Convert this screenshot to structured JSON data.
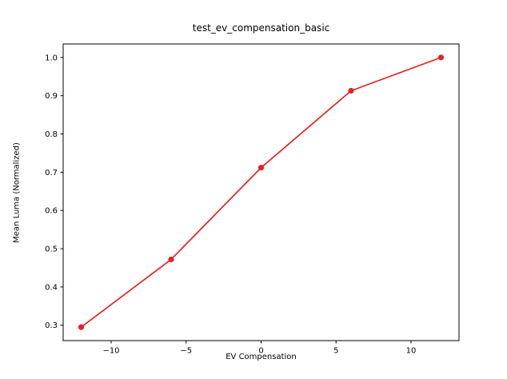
{
  "chart_data": {
    "type": "line",
    "title": "test_ev_compensation_basic",
    "xlabel": "EV Compensation",
    "ylabel": "Mean Luma (Normalized)",
    "x": [
      -12,
      -6,
      0,
      6,
      12
    ],
    "y": [
      0.295,
      0.472,
      0.712,
      0.913,
      1.0
    ],
    "line_color": "#e42222",
    "marker": "circle",
    "grid": false,
    "legend": "none",
    "xlim": [
      -13.2,
      13.2
    ],
    "ylim": [
      0.2597,
      1.0353
    ],
    "x_ticks": [
      -10,
      -5,
      0,
      5,
      10
    ],
    "x_tick_labels": [
      "−10",
      "−5",
      "0",
      "5",
      "10"
    ],
    "y_ticks": [
      0.3,
      0.4,
      0.5,
      0.6,
      0.7,
      0.8,
      0.9,
      1.0
    ],
    "y_tick_labels": [
      "0.3",
      "0.4",
      "0.5",
      "0.6",
      "0.7",
      "0.8",
      "0.9",
      "1.0"
    ]
  }
}
